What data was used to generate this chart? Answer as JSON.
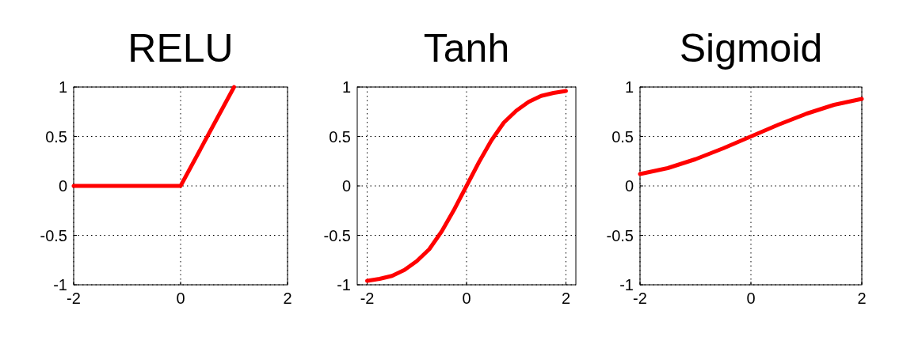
{
  "chart_data": [
    {
      "type": "line",
      "title": "RELU",
      "x": [
        -2,
        0,
        1
      ],
      "series": [
        {
          "color": "#ff0000",
          "values": [
            0,
            0,
            1
          ]
        }
      ],
      "xlim": [
        -2,
        2
      ],
      "ylim": [
        -1,
        1
      ],
      "xticks": [
        -2,
        0,
        2
      ],
      "yticks": [
        -1,
        -0.5,
        0,
        0.5,
        1
      ],
      "grid": true
    },
    {
      "type": "line",
      "title": "Tanh",
      "x": [
        -2,
        -1.75,
        -1.5,
        -1.25,
        -1,
        -0.75,
        -0.5,
        -0.25,
        0,
        0.25,
        0.5,
        0.75,
        1,
        1.25,
        1.5,
        1.75,
        2
      ],
      "series": [
        {
          "color": "#ff0000",
          "values": [
            -0.96,
            -0.94,
            -0.91,
            -0.85,
            -0.76,
            -0.64,
            -0.46,
            -0.24,
            0,
            0.24,
            0.46,
            0.64,
            0.76,
            0.85,
            0.91,
            0.94,
            0.96
          ]
        }
      ],
      "xlim": [
        -2.2,
        2.2
      ],
      "ylim": [
        -1,
        1
      ],
      "xticks": [
        -2,
        0,
        2
      ],
      "yticks": [
        -1,
        -0.5,
        0,
        0.5,
        1
      ],
      "grid": true
    },
    {
      "type": "line",
      "title": "Sigmoid",
      "x": [
        -2,
        -1.5,
        -1,
        -0.5,
        0,
        0.5,
        1,
        1.5,
        2
      ],
      "series": [
        {
          "color": "#ff0000",
          "values": [
            0.12,
            0.18,
            0.27,
            0.38,
            0.5,
            0.62,
            0.73,
            0.82,
            0.88
          ]
        }
      ],
      "xlim": [
        -2,
        2
      ],
      "ylim": [
        -1,
        1
      ],
      "xticks": [
        -2,
        0,
        2
      ],
      "yticks": [
        -1,
        -0.5,
        0,
        0.5,
        1
      ],
      "grid": true
    }
  ]
}
